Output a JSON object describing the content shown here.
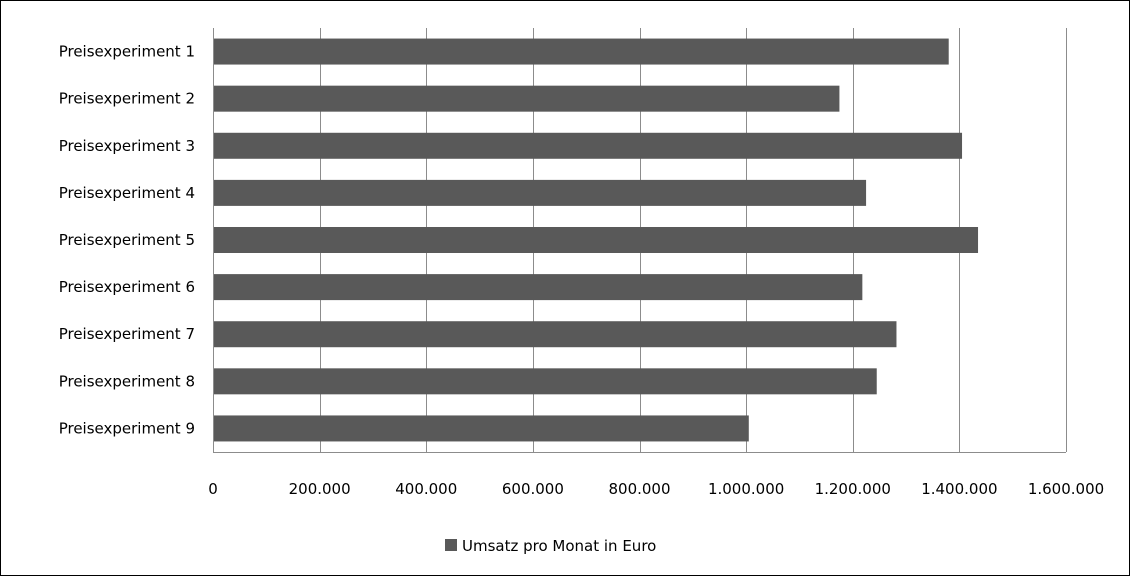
{
  "chart_data": {
    "type": "bar",
    "orientation": "horizontal",
    "categories": [
      "Preisexperiment 1",
      "Preisexperiment 2",
      "Preisexperiment 3",
      "Preisexperiment 4",
      "Preisexperiment 5",
      "Preisexperiment 6",
      "Preisexperiment 7",
      "Preisexperiment 8",
      "Preisexperiment 9"
    ],
    "series": [
      {
        "name": "Umsatz pro Monat in Euro",
        "color": "#595959",
        "values": [
          1380000,
          1175000,
          1405000,
          1225000,
          1435000,
          1218000,
          1282000,
          1245000,
          1005000
        ]
      }
    ],
    "xticks": [
      "0",
      "200.000",
      "400.000",
      "600.000",
      "800.000",
      "1.000.000",
      "1.200.000",
      "1.400.000",
      "1.600.000"
    ],
    "xlim": [
      0,
      1600000
    ],
    "grid": true,
    "legend": "bottom",
    "title": "",
    "xlabel": "",
    "ylabel": ""
  }
}
